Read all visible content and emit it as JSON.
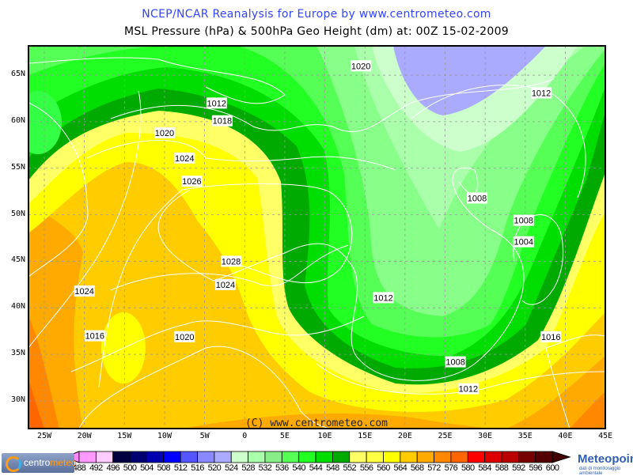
{
  "header": {
    "title": "NCEP/NCAR Reanalysis for Europe by www.centrometeo.com",
    "subtitle": "MSL Pressure (hPa) & 500hPa Geo Height (dm) at: 00Z 15-02-2009"
  },
  "map": {
    "copyright": "(C) www.centrometeo.com",
    "lon_labels": [
      "25W",
      "20W",
      "15W",
      "10W",
      "5W",
      "0",
      "5E",
      "10E",
      "15E",
      "20E",
      "25E",
      "30E",
      "35E",
      "40E",
      "45E"
    ],
    "lat_labels": [
      "65N",
      "60N",
      "55N",
      "50N",
      "45N",
      "40N",
      "35N",
      "30N"
    ],
    "isobar_labels": [
      {
        "text": "1020",
        "lon": 14.5,
        "lat": 66.0
      },
      {
        "text": "1012",
        "lon": -3.5,
        "lat": 62.0
      },
      {
        "text": "1018",
        "lon": -2.8,
        "lat": 60.1
      },
      {
        "text": "1020",
        "lon": -10.0,
        "lat": 58.8
      },
      {
        "text": "1024",
        "lon": -7.5,
        "lat": 56.1
      },
      {
        "text": "1026",
        "lon": -6.6,
        "lat": 53.6
      },
      {
        "text": "1012",
        "lon": 37.0,
        "lat": 63.1
      },
      {
        "text": "1008",
        "lon": 29.0,
        "lat": 51.8
      },
      {
        "text": "1008",
        "lon": 34.8,
        "lat": 49.4
      },
      {
        "text": "1004",
        "lon": 34.8,
        "lat": 47.1
      },
      {
        "text": "1028",
        "lon": -1.7,
        "lat": 45.0
      },
      {
        "text": "1024",
        "lon": -2.4,
        "lat": 42.5
      },
      {
        "text": "1024",
        "lon": -20.0,
        "lat": 41.8
      },
      {
        "text": "1012",
        "lon": 17.3,
        "lat": 41.1
      },
      {
        "text": "1016",
        "lon": -18.7,
        "lat": 37.0
      },
      {
        "text": "1020",
        "lon": -7.5,
        "lat": 36.9
      },
      {
        "text": "1016",
        "lon": 38.2,
        "lat": 36.9
      },
      {
        "text": "1008",
        "lon": 26.3,
        "lat": 34.2
      },
      {
        "text": "1012",
        "lon": 27.9,
        "lat": 31.3
      }
    ],
    "colors": {
      "contour_line": "#ffffff",
      "grid": "#999999"
    }
  },
  "colorbar": {
    "labels": [
      "488",
      "492",
      "496",
      "500",
      "504",
      "508",
      "512",
      "516",
      "520",
      "524",
      "528",
      "532",
      "536",
      "540",
      "544",
      "548",
      "552",
      "556",
      "560",
      "564",
      "568",
      "572",
      "576",
      "580",
      "584",
      "588",
      "592",
      "596",
      "600"
    ],
    "colors": [
      "#ff99ff",
      "#ffccff",
      "#000040",
      "#000070",
      "#0000b0",
      "#0000ff",
      "#5555ff",
      "#8888ff",
      "#aaaaff",
      "#ccffcc",
      "#aaffaa",
      "#88ee88",
      "#55ff55",
      "#22ff22",
      "#00dd00",
      "#00aa00",
      "#ffff66",
      "#ffff44",
      "#ffff00",
      "#ffcc00",
      "#ffaa00",
      "#ff8800",
      "#ff6600",
      "#ff0000",
      "#dd0000",
      "#bb0000",
      "#770000",
      "#550000"
    ],
    "low_arrow_color": "#ff88ff",
    "high_arrow_color": "#440000"
  },
  "logos": {
    "left": {
      "part1": "centro",
      "part2": "meteo"
    },
    "right": {
      "name": "Meteopoint",
      "tagline": "dati di monitoraggio ambientale"
    }
  }
}
